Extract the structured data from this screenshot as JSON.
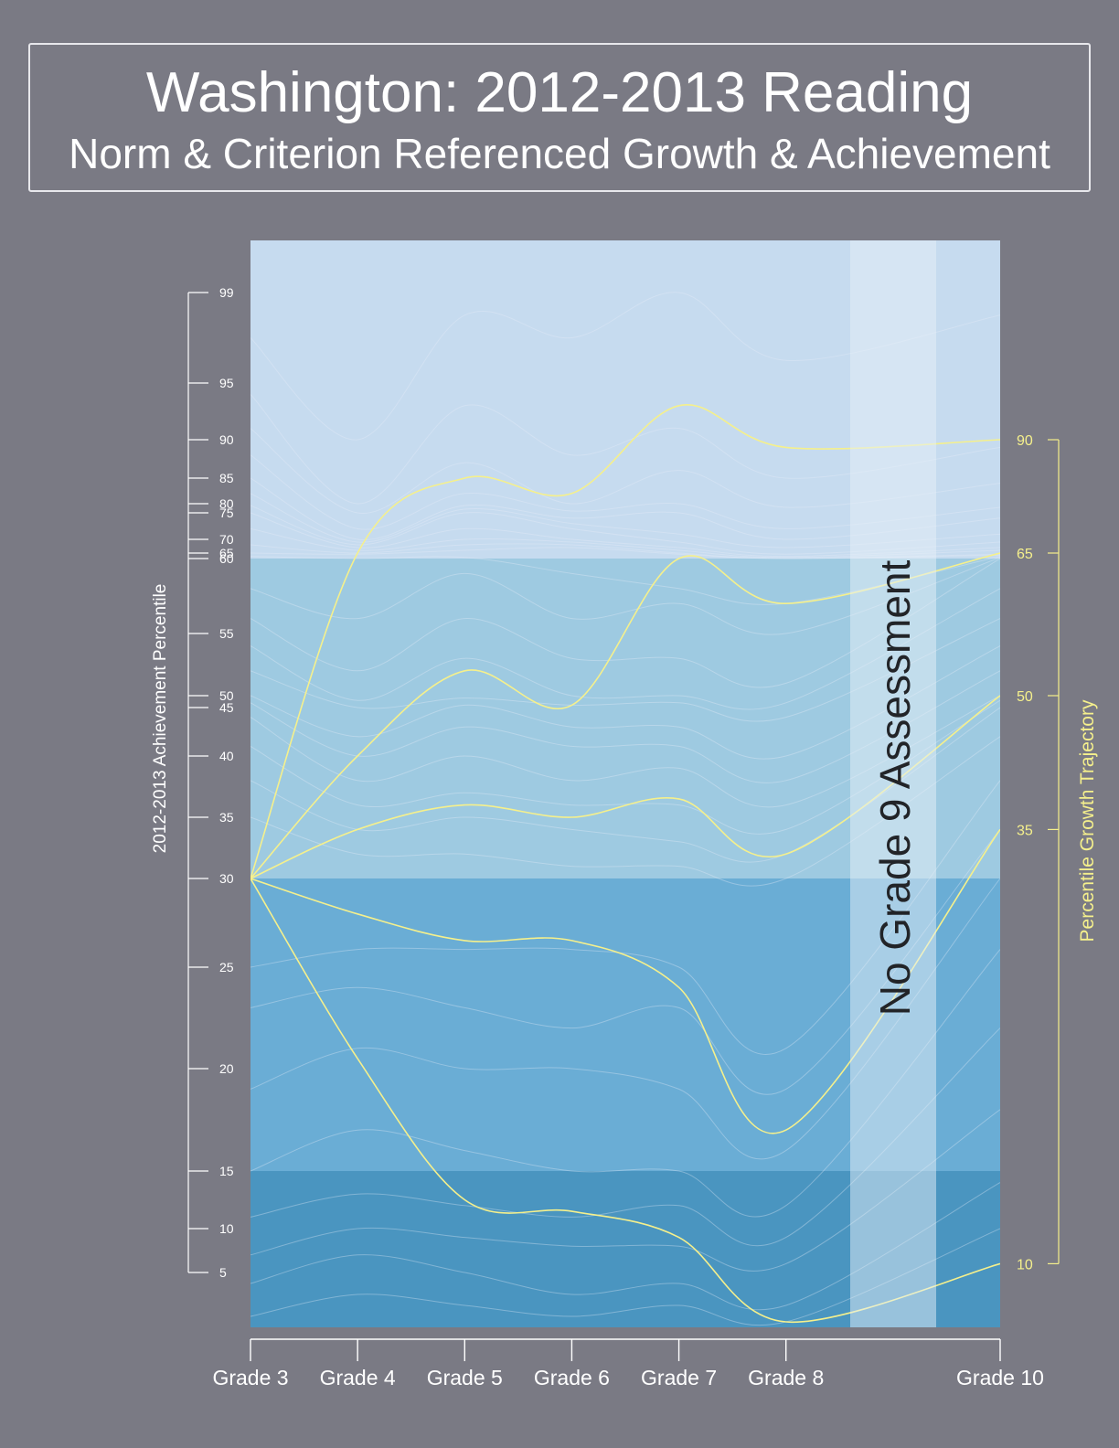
{
  "header": {
    "title": "Washington: 2012-2013 Reading",
    "subtitle": "Norm & Criterion Referenced Growth & Achievement"
  },
  "chart_data": {
    "type": "line",
    "x_categories": [
      "Grade 3",
      "Grade 4",
      "Grade 5",
      "Grade 6",
      "Grade 7",
      "Grade 8",
      "Grade 10"
    ],
    "x_positions": [
      3,
      4,
      5,
      6,
      7,
      8,
      10
    ],
    "left_axis": {
      "label": "2012-2013 Achievement Percentile",
      "ticks": [
        5,
        10,
        15,
        20,
        25,
        30,
        35,
        40,
        45,
        50,
        55,
        60,
        65,
        70,
        75,
        80,
        85,
        90,
        95,
        99
      ]
    },
    "right_axis": {
      "label": "Percentile Growth Trajectory",
      "ticks": [
        10,
        35,
        50,
        65,
        90
      ]
    },
    "annotation": "No Grade 9 Assessment",
    "bands": [
      {
        "from": 0,
        "to": 15,
        "color": "#4a95c0"
      },
      {
        "from": 15,
        "to": 30,
        "color": "#6aadd5"
      },
      {
        "from": 30,
        "to": 60,
        "color": "#9ecae1"
      },
      {
        "from": 60,
        "to": 100,
        "color": "#c6dbef"
      }
    ],
    "colors": {
      "trajectory": "#f5f08c",
      "reference": "#e8eef8",
      "axis": "#ffffff",
      "background": "#7a7a84",
      "no_assessment": "#e6eff8"
    },
    "trajectories": [
      {
        "percentile": 90,
        "values": [
          30,
          65,
          85,
          82,
          93,
          89,
          90
        ]
      },
      {
        "percentile": 65,
        "values": [
          30,
          40,
          52,
          46,
          60,
          57,
          65
        ]
      },
      {
        "percentile": 50,
        "values": [
          30,
          34,
          36,
          35,
          36.5,
          32,
          50
        ]
      },
      {
        "percentile": 35,
        "values": [
          30,
          28,
          26.5,
          26.5,
          24,
          17,
          34
        ]
      },
      {
        "percentile": 10,
        "values": [
          30,
          20.5,
          12.5,
          11.5,
          9,
          0.5,
          6
        ]
      }
    ],
    "reference_lines": [
      [
        97,
        90,
        98,
        97,
        99,
        96,
        98
      ],
      [
        94,
        80,
        93,
        88,
        91,
        85,
        89
      ],
      [
        91,
        75,
        87,
        80,
        86,
        78,
        84
      ],
      [
        88,
        72,
        82,
        76,
        80,
        72,
        78
      ],
      [
        85,
        70,
        79,
        74,
        75,
        70,
        74
      ],
      [
        82,
        69,
        77,
        73,
        71,
        67,
        71
      ],
      [
        79,
        68,
        75,
        72,
        69,
        64,
        69
      ],
      [
        75,
        67,
        72,
        70,
        67,
        62,
        67
      ],
      [
        72,
        66,
        70,
        69,
        66,
        61,
        66
      ],
      [
        68,
        65,
        68,
        68,
        65,
        60,
        64
      ],
      [
        65,
        64,
        66,
        67,
        64,
        60,
        63
      ],
      [
        62,
        60,
        61,
        59,
        58,
        57,
        62
      ],
      [
        58,
        56,
        59,
        56,
        57,
        55,
        61
      ],
      [
        56,
        52,
        56,
        53,
        53,
        51,
        60
      ],
      [
        54,
        48,
        53,
        50,
        50,
        47,
        58
      ],
      [
        52,
        45,
        49,
        46,
        47,
        44,
        56
      ],
      [
        50,
        42,
        46,
        43,
        43,
        40,
        54
      ],
      [
        47,
        40,
        43,
        41,
        41,
        38,
        52
      ],
      [
        44,
        38,
        40,
        38,
        39,
        36,
        50
      ],
      [
        41,
        36,
        37,
        36,
        36,
        34,
        48
      ],
      [
        38,
        34,
        35,
        34,
        33,
        32,
        45
      ],
      [
        35,
        32,
        32,
        31,
        31,
        30,
        42
      ],
      [
        25,
        26,
        26,
        26,
        25,
        21,
        38
      ],
      [
        23,
        24,
        23,
        22,
        23,
        19,
        34
      ],
      [
        19,
        21,
        20,
        20,
        19,
        16,
        30
      ],
      [
        15,
        17,
        16,
        15,
        15,
        12,
        26
      ],
      [
        11,
        13,
        12,
        11,
        12,
        9,
        22
      ],
      [
        7,
        10,
        9,
        8,
        8,
        6,
        18
      ],
      [
        4,
        7,
        5,
        3,
        4,
        2,
        14
      ],
      [
        1,
        3,
        2,
        1,
        2,
        0.5,
        10
      ]
    ]
  }
}
